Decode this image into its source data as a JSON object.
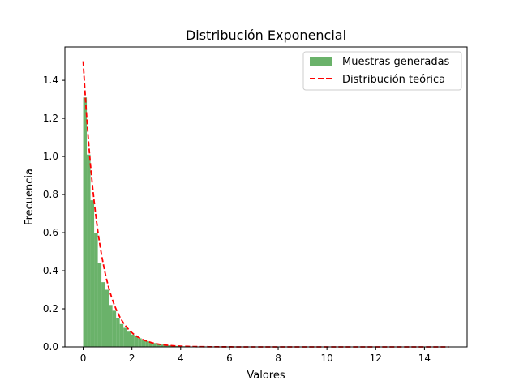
{
  "chart_data": {
    "type": "bar",
    "title": "Distribución Exponencial",
    "xlabel": "Valores",
    "ylabel": "Frecuencia",
    "xlim": [
      -0.75,
      15.75
    ],
    "ylim": [
      0,
      1.575
    ],
    "xticks": [
      0,
      2,
      4,
      6,
      8,
      10,
      12,
      14
    ],
    "yticks": [
      0.0,
      0.2,
      0.4,
      0.6,
      0.8,
      1.0,
      1.2,
      1.4
    ],
    "grid": false,
    "legend_position": "top-right",
    "histogram": {
      "name": "Muestras generadas",
      "color": "#6ab26a",
      "bin_edges": [
        0,
        0.15,
        0.3,
        0.45,
        0.6,
        0.75,
        0.9,
        1.05,
        1.2,
        1.35,
        1.5,
        1.65,
        1.8,
        1.95,
        2.1,
        2.25,
        2.4,
        2.55,
        2.7,
        2.85,
        3.0,
        3.15,
        3.3,
        3.45,
        3.6,
        3.75,
        3.9,
        4.05,
        4.2,
        4.35,
        4.5,
        4.65,
        4.8,
        4.95
      ],
      "values": [
        1.31,
        1.01,
        0.77,
        0.6,
        0.44,
        0.34,
        0.3,
        0.22,
        0.19,
        0.15,
        0.12,
        0.1,
        0.08,
        0.065,
        0.055,
        0.045,
        0.035,
        0.03,
        0.025,
        0.02,
        0.015,
        0.012,
        0.01,
        0.008,
        0.006,
        0.005,
        0.004,
        0.003,
        0.003,
        0.002,
        0.002,
        0.001,
        0.001
      ]
    },
    "series": [
      {
        "name": "Distribución teórica",
        "color": "#ff0000",
        "style": "dashed",
        "lambda": 1.5,
        "x_range": [
          0,
          15
        ]
      }
    ]
  }
}
